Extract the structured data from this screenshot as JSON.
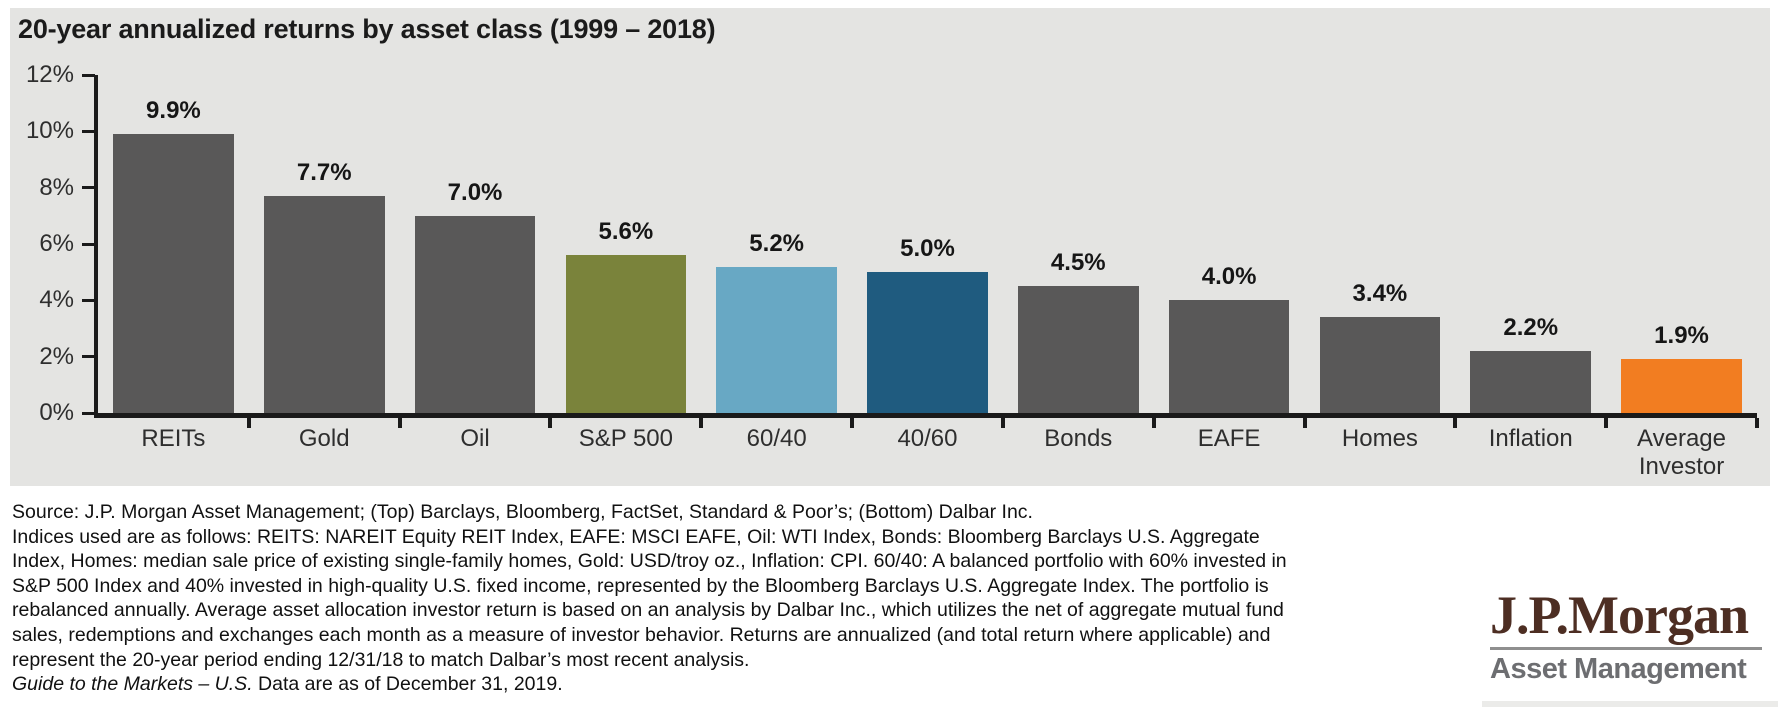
{
  "chart_data": {
    "type": "bar",
    "title": "20-year annualized returns by asset class (1999 – 2018)",
    "categories": [
      "REITs",
      "Gold",
      "Oil",
      "S&P 500",
      "60/40",
      "40/60",
      "Bonds",
      "EAFE",
      "Homes",
      "Inflation",
      "Average Investor"
    ],
    "values": [
      9.9,
      7.7,
      7.0,
      5.6,
      5.2,
      5.0,
      4.5,
      4.0,
      3.4,
      2.2,
      1.9
    ],
    "value_labels": [
      "9.9%",
      "7.7%",
      "7.0%",
      "5.6%",
      "5.2%",
      "5.0%",
      "4.5%",
      "4.0%",
      "3.4%",
      "2.2%",
      "1.9%"
    ],
    "bar_colors": [
      "#595858",
      "#595858",
      "#595858",
      "#7A833B",
      "#68A8C4",
      "#1F5B7F",
      "#595858",
      "#595858",
      "#595858",
      "#595858",
      "#F27D21"
    ],
    "xlabel": "",
    "ylabel": "",
    "ylim": [
      0,
      12
    ],
    "yticks": [
      "0%",
      "2%",
      "4%",
      "6%",
      "8%",
      "10%",
      "12%"
    ],
    "grid": false,
    "legend": "none",
    "plot_background": "#E4E4E2"
  },
  "footnote": {
    "lines": [
      "Source: J.P. Morgan Asset Management; (Top) Barclays, Bloomberg, FactSet, Standard & Poor’s; (Bottom) Dalbar Inc.",
      "Indices used are as follows: REITS: NAREIT Equity REIT Index, EAFE: MSCI EAFE, Oil: WTI Index, Bonds: Bloomberg Barclays U.S. Aggregate",
      "Index, Homes: median sale price of existing single-family homes, Gold: USD/troy oz., Inflation: CPI. 60/40: A balanced portfolio with 60% invested in",
      "S&P 500 Index and 40% invested in high-quality U.S. fixed income, represented by the Bloomberg Barclays U.S. Aggregate Index. The portfolio is",
      "rebalanced annually. Average asset allocation investor return is based on an analysis by Dalbar Inc., which utilizes the net of aggregate mutual fund",
      "sales, redemptions and exchanges each month as a measure of investor behavior. Returns are annualized (and total return where applicable) and",
      "represent the 20-year period ending 12/31/18 to match Dalbar’s most recent analysis."
    ],
    "last_line_italic": "Guide to the Markets – U.S.",
    "last_line_rest": " Data are as of December 31, 2019."
  },
  "logo": {
    "name": "J.P.Morgan",
    "subtitle": "Asset Management",
    "name_color": "#4D2E23",
    "subtitle_color": "#6D6E71"
  }
}
